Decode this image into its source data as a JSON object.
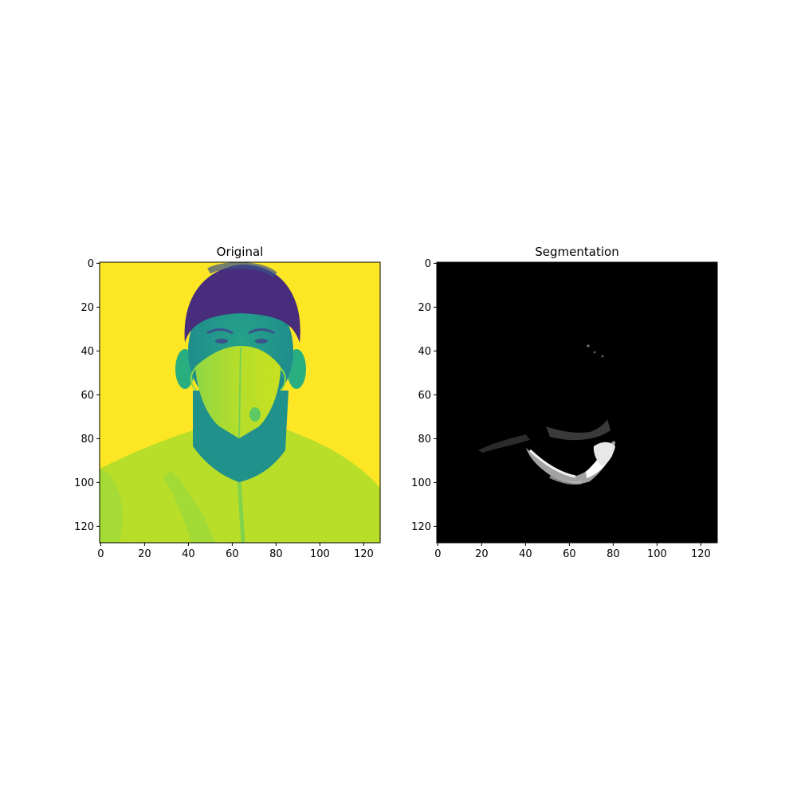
{
  "chart_data": [
    {
      "type": "heatmap",
      "title": "Original",
      "colormap": "viridis",
      "x_ticks": [
        0,
        20,
        40,
        60,
        80,
        100,
        120
      ],
      "y_ticks": [
        0,
        20,
        40,
        60,
        80,
        100,
        120
      ],
      "xlim": [
        -0.5,
        127.5
      ],
      "ylim": [
        127.5,
        -0.5
      ],
      "grid": false,
      "content": "grayscale photo of a man wearing a face mask rendered with a yellow-green-blue colormap"
    },
    {
      "type": "heatmap",
      "title": "Segmentation",
      "colormap": "gray",
      "x_ticks": [
        0,
        20,
        40,
        60,
        80,
        100,
        120
      ],
      "y_ticks": [
        0,
        20,
        40,
        60,
        80,
        100,
        120
      ],
      "xlim": [
        -0.5,
        127.5
      ],
      "ylim": [
        127.5,
        -0.5
      ],
      "grid": false,
      "content": "mostly black mask with a bright curved band near x 45-80, y 80-100"
    }
  ],
  "colors": {
    "viridis_yellow": "#fde725",
    "viridis_green": "#9dd93a",
    "viridis_teal": "#21918c",
    "viridis_blue": "#3b528b",
    "viridis_purple": "#472d7b",
    "seg_background": "#000000",
    "seg_highlight": "#ffffff"
  }
}
